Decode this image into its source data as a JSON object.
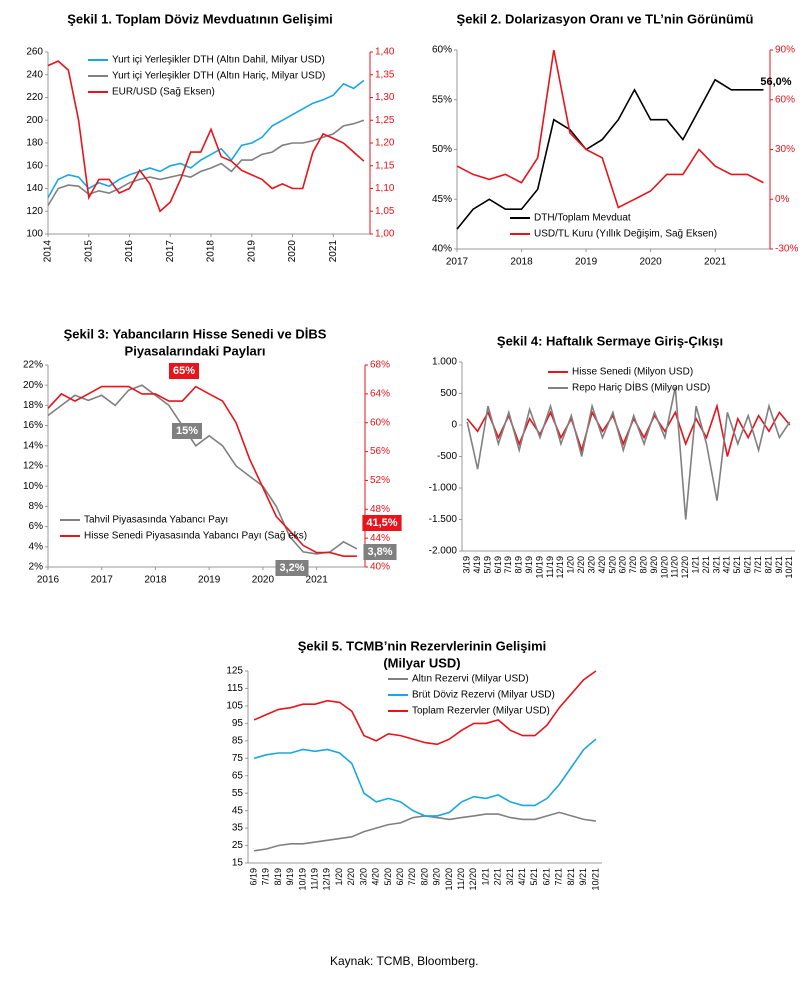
{
  "chart_data": [
    {
      "type": "line",
      "title": "Şekil 1. Toplam Döviz Mevduatının Gelişimi",
      "x": [
        2014.0,
        2014.25,
        2014.5,
        2014.75,
        2015.0,
        2015.25,
        2015.5,
        2015.75,
        2016.0,
        2016.25,
        2016.5,
        2016.75,
        2017.0,
        2017.25,
        2017.5,
        2017.75,
        2018.0,
        2018.25,
        2018.5,
        2018.75,
        2019.0,
        2019.25,
        2019.5,
        2019.75,
        2020.0,
        2020.25,
        2020.5,
        2020.75,
        2021.0,
        2021.25,
        2021.5,
        2021.75
      ],
      "xlim": [
        2014,
        2021.9
      ],
      "xticks": [
        2014,
        2015,
        2016,
        2017,
        2018,
        2019,
        2020,
        2021
      ],
      "ylim": [
        100,
        260
      ],
      "yticks": [
        100,
        120,
        140,
        160,
        180,
        200,
        220,
        240,
        260
      ],
      "y2lim": [
        1.0,
        1.4
      ],
      "y2ticks": [
        {
          "value": 1.0,
          "label": "1,00"
        },
        {
          "value": 1.05,
          "label": "1,05"
        },
        {
          "value": 1.1,
          "label": "1,10"
        },
        {
          "value": 1.15,
          "label": "1,15"
        },
        {
          "value": 1.2,
          "label": "1,20"
        },
        {
          "value": 1.25,
          "label": "1,25"
        },
        {
          "value": 1.3,
          "label": "1,30"
        },
        {
          "value": 1.35,
          "label": "1,35"
        },
        {
          "value": 1.4,
          "label": "1,40"
        }
      ],
      "series": [
        {
          "name": "Yurt içi Yerleşikler DTH (Altın Dahil, Milyar USD)",
          "color": "#1aa7e0",
          "values": [
            132,
            148,
            152,
            150,
            140,
            145,
            142,
            148,
            152,
            155,
            158,
            155,
            160,
            162,
            158,
            165,
            170,
            175,
            165,
            178,
            180,
            185,
            195,
            200,
            205,
            210,
            215,
            218,
            222,
            232,
            228,
            235
          ]
        },
        {
          "name": "Yurt içi Yerleşikler DTH (Altın Hariç, Milyar USD)",
          "color": "#808080",
          "values": [
            125,
            140,
            143,
            142,
            135,
            138,
            136,
            140,
            145,
            148,
            150,
            148,
            150,
            152,
            150,
            155,
            158,
            162,
            155,
            165,
            165,
            170,
            172,
            178,
            180,
            180,
            182,
            185,
            188,
            195,
            197,
            200
          ]
        },
        {
          "name": "EUR/USD (Sağ Eksen)",
          "color": "#e8141b",
          "axis": "y2",
          "values": [
            1.37,
            1.38,
            1.36,
            1.25,
            1.08,
            1.12,
            1.12,
            1.09,
            1.1,
            1.14,
            1.11,
            1.05,
            1.07,
            1.12,
            1.18,
            1.18,
            1.23,
            1.17,
            1.16,
            1.14,
            1.13,
            1.12,
            1.1,
            1.11,
            1.1,
            1.1,
            1.18,
            1.22,
            1.21,
            1.2,
            1.18,
            1.16
          ]
        }
      ]
    },
    {
      "type": "line",
      "title": "Şekil 2. Dolarizasyon Oranı ve TL’nin Görünümü",
      "x": [
        2017.0,
        2017.25,
        2017.5,
        2017.75,
        2018.0,
        2018.25,
        2018.5,
        2018.75,
        2019.0,
        2019.25,
        2019.5,
        2019.75,
        2020.0,
        2020.25,
        2020.5,
        2020.75,
        2021.0,
        2021.25,
        2021.5,
        2021.75
      ],
      "xlim": [
        2017,
        2021.85
      ],
      "xticks": [
        2017,
        2018,
        2019,
        2020,
        2021
      ],
      "ylim": [
        40,
        60
      ],
      "yticks": [
        {
          "value": 40,
          "label": "40%"
        },
        {
          "value": 45,
          "label": "45%"
        },
        {
          "value": 50,
          "label": "50%"
        },
        {
          "value": 55,
          "label": "55%"
        },
        {
          "value": 60,
          "label": "60%"
        }
      ],
      "y2lim": [
        -30,
        90
      ],
      "y2ticks": [
        {
          "value": -30,
          "label": "-30%"
        },
        {
          "value": 0,
          "label": "0%"
        },
        {
          "value": 30,
          "label": "30%"
        },
        {
          "value": 60,
          "label": "60%"
        },
        {
          "value": 90,
          "label": "90%"
        }
      ],
      "annotations": [
        "56,0%"
      ],
      "series": [
        {
          "name": "DTH/Toplam Mevduat",
          "color": "#000000",
          "values": [
            42,
            44,
            45,
            44,
            44,
            46,
            53,
            52,
            50,
            51,
            53,
            56,
            53,
            53,
            51,
            54,
            57,
            56,
            56,
            56
          ]
        },
        {
          "name": "USD/TL Kuru (Yıllık Değişim, Sağ Eksen)",
          "color": "#e8141b",
          "axis": "y2",
          "values": [
            20,
            15,
            12,
            15,
            10,
            25,
            90,
            40,
            30,
            25,
            -5,
            0,
            5,
            15,
            15,
            30,
            20,
            15,
            15,
            10
          ]
        }
      ]
    },
    {
      "type": "line",
      "title": [
        "Şekil 3: Yabancıların Hisse Senedi ve DİBS",
        "Piyasalarındaki Payları"
      ],
      "x": [
        2016.0,
        2016.25,
        2016.5,
        2016.75,
        2017.0,
        2017.25,
        2017.5,
        2017.75,
        2018.0,
        2018.25,
        2018.5,
        2018.75,
        2019.0,
        2019.25,
        2019.5,
        2019.75,
        2020.0,
        2020.25,
        2020.5,
        2020.75,
        2021.0,
        2021.25,
        2021.5,
        2021.75
      ],
      "xlim": [
        2016,
        2021.9
      ],
      "xticks": [
        2016,
        2017,
        2018,
        2019,
        2020,
        2021
      ],
      "ylim": [
        2,
        22
      ],
      "yticks": [
        {
          "value": 2,
          "label": "2%"
        },
        {
          "value": 4,
          "label": "4%"
        },
        {
          "value": 6,
          "label": "6%"
        },
        {
          "value": 8,
          "label": "8%"
        },
        {
          "value": 10,
          "label": "10%"
        },
        {
          "value": 12,
          "label": "12%"
        },
        {
          "value": 14,
          "label": "14%"
        },
        {
          "value": 16,
          "label": "16%"
        },
        {
          "value": 18,
          "label": "18%"
        },
        {
          "value": 20,
          "label": "20%"
        },
        {
          "value": 22,
          "label": "22%"
        }
      ],
      "y2lim": [
        40,
        68
      ],
      "y2ticks": [
        {
          "value": 40,
          "label": "40%"
        },
        {
          "value": 44,
          "label": "44%"
        },
        {
          "value": 48,
          "label": "48%"
        },
        {
          "value": 52,
          "label": "52%"
        },
        {
          "value": 56,
          "label": "56%"
        },
        {
          "value": 60,
          "label": "60%"
        },
        {
          "value": 64,
          "label": "64%"
        },
        {
          "value": 68,
          "label": "68%"
        }
      ],
      "annotations": [
        "65%",
        "15%",
        "3,2%",
        "41,5%",
        "3,8%"
      ],
      "series": [
        {
          "name": "Tahvil Piyasasında Yabancı Payı",
          "color": "#808080",
          "values": [
            17,
            18,
            19,
            18.5,
            19,
            18,
            19.5,
            20,
            19,
            18,
            16,
            14,
            15,
            14,
            12,
            11,
            10,
            8,
            5,
            3.5,
            3.3,
            3.5,
            4.5,
            3.8
          ]
        },
        {
          "name": "Hisse Senedi Piyasasında Yabancı Payı (Sağ eks)",
          "color": "#e8141b",
          "axis": "y2",
          "values": [
            62,
            64,
            63,
            64,
            65,
            65,
            65,
            64,
            64,
            63,
            63,
            65,
            64,
            63,
            60,
            55,
            51,
            47,
            45,
            43,
            42,
            42,
            41.5,
            41.5
          ]
        }
      ]
    },
    {
      "type": "line",
      "title": "Şekil 4: Haftalık Sermaye Giriş-Çıkışı",
      "categories": [
        "3/19",
        "4/19",
        "5/19",
        "6/19",
        "7/19",
        "8/19",
        "9/19",
        "10/19",
        "11/19",
        "12/19",
        "1/20",
        "2/20",
        "3/20",
        "4/20",
        "5/20",
        "6/20",
        "7/20",
        "8/20",
        "9/20",
        "10/20",
        "11/20",
        "12/20",
        "1/21",
        "2/21",
        "3/21",
        "4/21",
        "5/21",
        "6/21",
        "7/21",
        "8/21",
        "9/21",
        "10/21"
      ],
      "ylim": [
        -2000,
        1000
      ],
      "yticks": [
        {
          "value": -2000,
          "label": "-2.000"
        },
        {
          "value": -1500,
          "label": "-1.500"
        },
        {
          "value": -1000,
          "label": "-1.000"
        },
        -500,
        0,
        500,
        {
          "value": 1000,
          "label": "1.000"
        }
      ],
      "series": [
        {
          "name": "Hisse Senedi (Milyon USD)",
          "color": "#e8141b",
          "values": [
            100,
            -100,
            200,
            -200,
            150,
            -300,
            100,
            -150,
            200,
            -200,
            100,
            -400,
            200,
            -100,
            150,
            -300,
            100,
            -200,
            150,
            -100,
            200,
            -300,
            100,
            -200,
            300,
            -500,
            100,
            -200,
            150,
            -100,
            200,
            0
          ]
        },
        {
          "name": "Repo Hariç DİBS (Milyon USD)",
          "color": "#808080",
          "values": [
            50,
            -700,
            300,
            -300,
            200,
            -400,
            250,
            -200,
            300,
            -300,
            150,
            -500,
            300,
            -200,
            200,
            -400,
            150,
            -300,
            200,
            -200,
            600,
            -1500,
            300,
            -300,
            -1200,
            200,
            -300,
            150,
            -400,
            300,
            -200,
            50
          ]
        }
      ]
    },
    {
      "type": "line",
      "title": [
        "Şekil 5. TCMB’nin Rezervlerinin Gelişimi",
        "(Milyar USD)"
      ],
      "categories": [
        "6/19",
        "7/19",
        "8/19",
        "9/19",
        "10/19",
        "11/19",
        "12/19",
        "1/20",
        "2/20",
        "3/20",
        "4/20",
        "5/20",
        "6/20",
        "7/20",
        "8/20",
        "9/20",
        "10/20",
        "11/20",
        "12/20",
        "1/21",
        "2/21",
        "3/21",
        "4/21",
        "5/21",
        "6/21",
        "7/21",
        "8/21",
        "9/21",
        "10/21"
      ],
      "ylim": [
        15,
        125
      ],
      "yticks": [
        15,
        25,
        35,
        45,
        55,
        65,
        75,
        85,
        95,
        105,
        115,
        125
      ],
      "series": [
        {
          "name": "Altın Rezervi (Milyar USD)",
          "color": "#808080",
          "values": [
            22,
            23,
            25,
            26,
            26,
            27,
            28,
            29,
            30,
            33,
            35,
            37,
            38,
            41,
            42,
            41,
            40,
            41,
            42,
            43,
            43,
            41,
            40,
            40,
            42,
            44,
            42,
            40,
            39
          ]
        },
        {
          "name": "Brüt Döviz Rezervi (Milyar USD)",
          "color": "#1aa7e0",
          "values": [
            75,
            77,
            78,
            78,
            80,
            79,
            80,
            78,
            72,
            55,
            50,
            52,
            50,
            45,
            42,
            42,
            44,
            50,
            53,
            52,
            54,
            50,
            48,
            48,
            52,
            60,
            70,
            80,
            86
          ]
        },
        {
          "name": "Toplam Rezervler (Milyar USD)",
          "color": "#e8141b",
          "values": [
            97,
            100,
            103,
            104,
            106,
            106,
            108,
            107,
            102,
            88,
            85,
            89,
            88,
            86,
            84,
            83,
            86,
            91,
            95,
            95,
            97,
            91,
            88,
            88,
            94,
            104,
            112,
            120,
            125
          ]
        }
      ]
    }
  ],
  "source": "Kaynak: TCMB, Bloomberg."
}
